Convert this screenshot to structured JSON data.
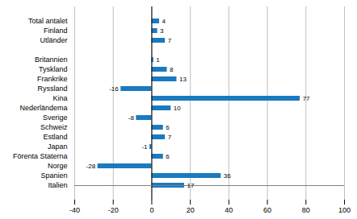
{
  "chart_data": {
    "type": "bar",
    "orientation": "horizontal",
    "categories": [
      "Italien",
      "Spanien",
      "Norge",
      "Förenta Staterna",
      "Japan",
      "Estland",
      "Schweiz",
      "Sverige",
      "Nederländema",
      "Kina",
      "Ryssland",
      "Frankrike",
      "Tyskland",
      "Britannien",
      null,
      "Utländer",
      "Finland",
      "Total antalet"
    ],
    "values": [
      17,
      36,
      -28,
      6,
      -1,
      7,
      6,
      -8,
      10,
      77,
      -16,
      13,
      8,
      1,
      null,
      7,
      3,
      4
    ],
    "color": "#1a7abf",
    "xlim": [
      -40,
      100
    ],
    "xticks": [
      -40,
      -20,
      0,
      20,
      40,
      60,
      80,
      100
    ],
    "grid": true,
    "data_labels": true
  }
}
